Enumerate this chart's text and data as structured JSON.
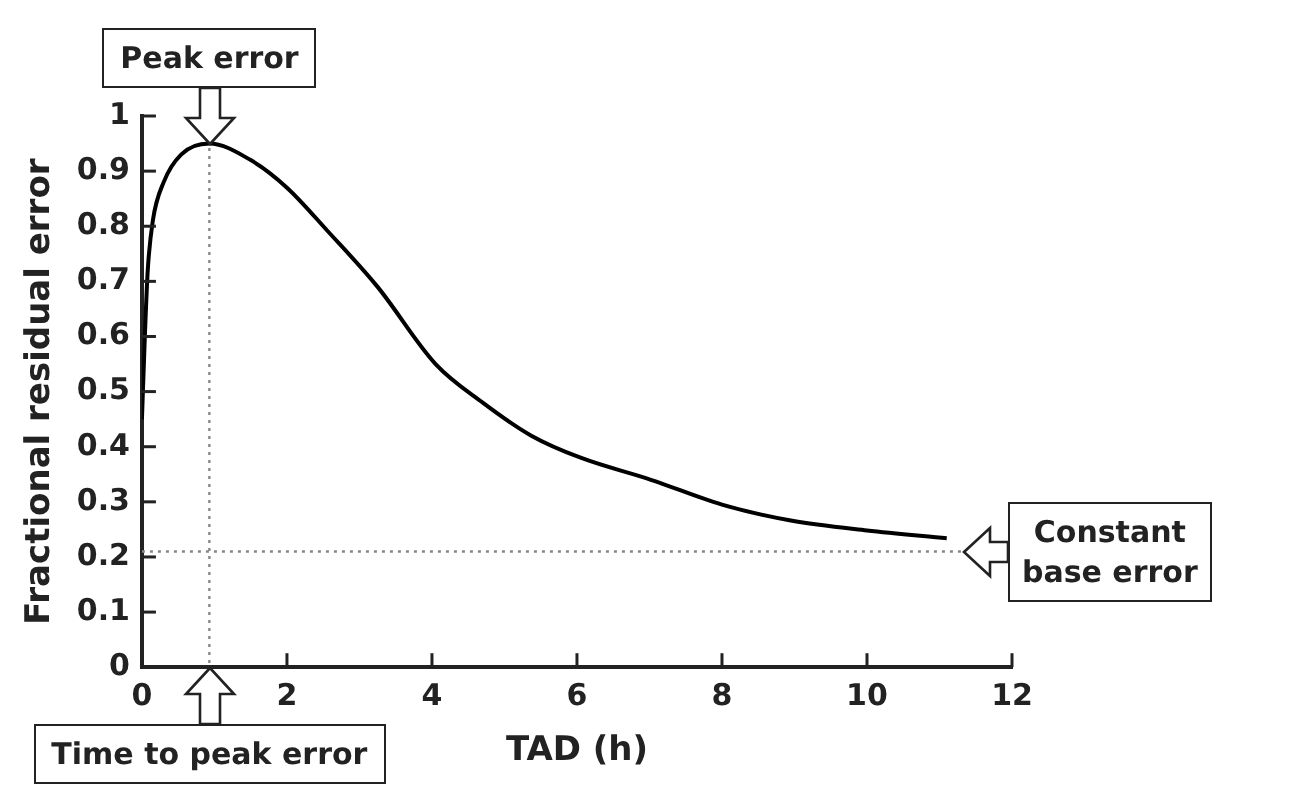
{
  "chart_data": {
    "type": "line",
    "xlabel": "TAD (h)",
    "ylabel": "Fractional residual error",
    "x": [
      0,
      0.04,
      0.08,
      0.15,
      0.3,
      0.54,
      0.93,
      1.5,
      2,
      2.57,
      3.25,
      4.05,
      4.7,
      5.37,
      6.05,
      7.02,
      8,
      8.95,
      10,
      11.1
    ],
    "series": [
      {
        "color": "#000000",
        "values": [
          0.45,
          0.6,
          0.72,
          0.81,
          0.88,
          0.93,
          0.95,
          0.92,
          0.87,
          0.79,
          0.69,
          0.55,
          0.48,
          0.42,
          0.38,
          0.34,
          0.295,
          0.266,
          0.248,
          0.234
        ]
      }
    ],
    "xlim": [
      0,
      12
    ],
    "xticks": [
      0,
      2,
      4,
      6,
      8,
      10,
      12
    ],
    "ylim": [
      0,
      1
    ],
    "yticks": [
      0,
      0.1,
      0.2,
      0.3,
      0.4,
      0.5,
      0.6,
      0.7,
      0.8,
      0.9,
      1
    ],
    "ref_lines": [
      {
        "axis": "x",
        "value": 0.93,
        "color": "#888888",
        "line_style": "dotted",
        "label": "Time to peak error"
      },
      {
        "axis": "y",
        "value": 0.21,
        "color": "#888888",
        "line_style": "dotted",
        "label": "Constant base error"
      }
    ],
    "annotations": [
      {
        "text": "Peak error",
        "x": 0.93,
        "y": 0.95
      }
    ],
    "grid": false,
    "legend": false,
    "marker": "none",
    "line_style": "solid"
  }
}
